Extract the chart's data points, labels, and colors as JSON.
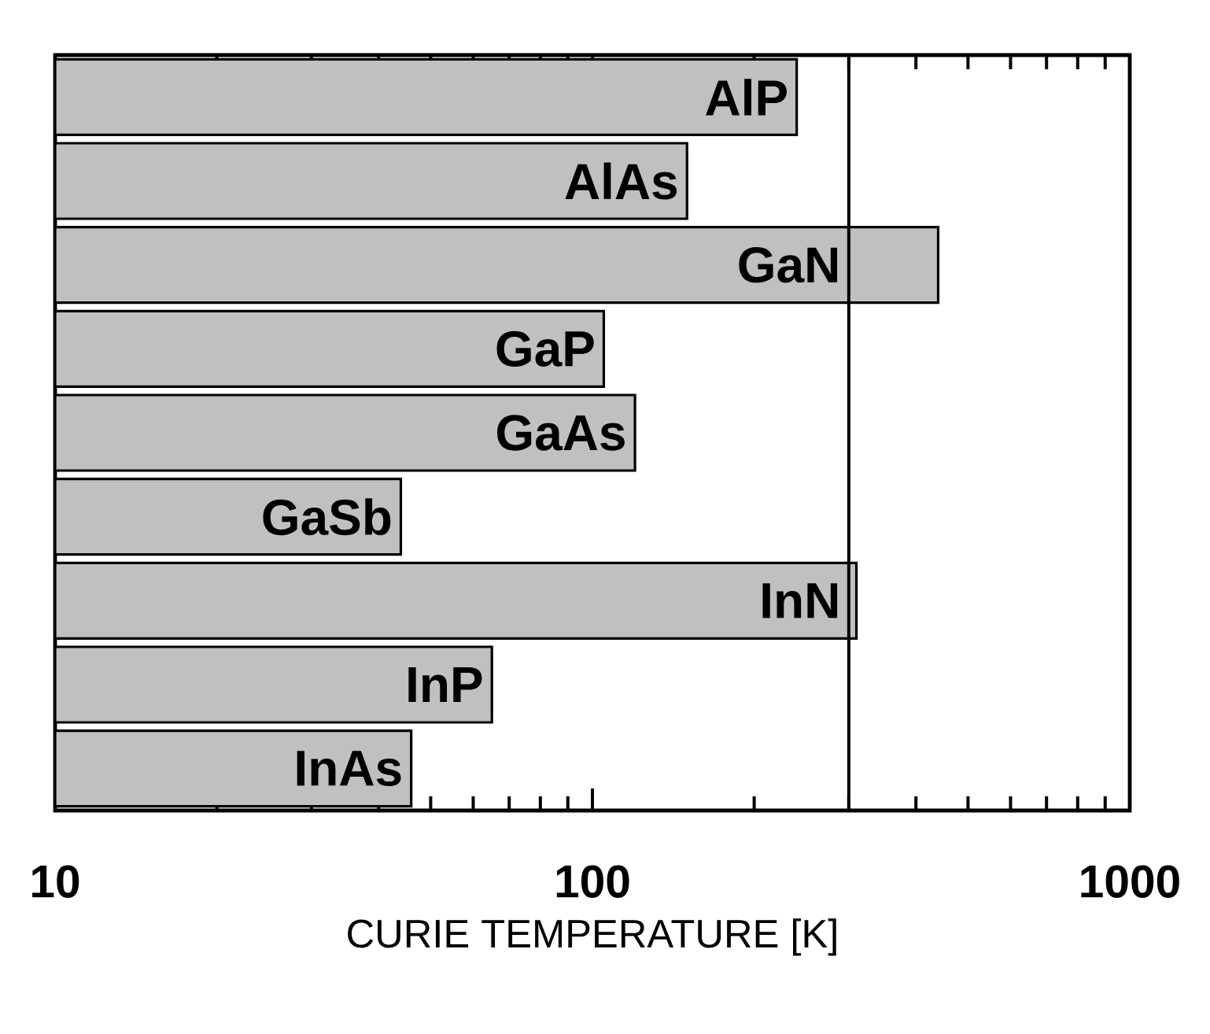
{
  "chart_data": {
    "type": "bar",
    "orientation": "horizontal",
    "log": "x",
    "xlabel": "CURIE TEMPERATURE [K]",
    "categories": [
      "AlP",
      "AlAs",
      "GaN",
      "GaP",
      "GaAs",
      "GaSb",
      "InN",
      "InP",
      "InAs"
    ],
    "values": [
      240,
      150,
      440,
      105,
      120,
      44,
      310,
      65,
      46
    ],
    "color": "#c0c0c0",
    "xlim": [
      10,
      1000
    ],
    "xticks": [
      10,
      100,
      1000
    ],
    "ref_lines": [
      {
        "axis": "x",
        "value": 300,
        "color": "#000000"
      }
    ],
    "grid": false
  }
}
